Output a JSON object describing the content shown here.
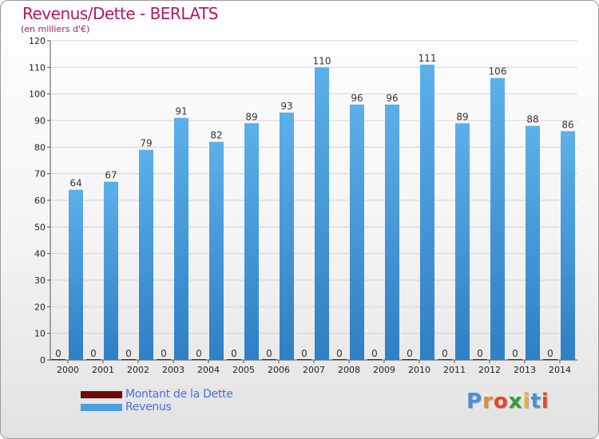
{
  "title": "Revenus/Dette - BERLATS",
  "subtitle": "(en milliers d'€)",
  "colors": {
    "title": "#b21a5e",
    "debt": "#6b0b0b",
    "revenue": "#4a9fe0",
    "legend_text": "#4a6fd8"
  },
  "logo": {
    "text": "Proxiti",
    "letter_colors": [
      "#4a8fd8",
      "#e08a2a",
      "#e04a2a",
      "#3a9a3a",
      "#d8b82a",
      "#4a8fd8",
      "#e04a2a"
    ]
  },
  "chart_data": {
    "type": "bar",
    "categories": [
      "2000",
      "2001",
      "2002",
      "2003",
      "2004",
      "2005",
      "2006",
      "2007",
      "2008",
      "2009",
      "2010",
      "2011",
      "2012",
      "2013",
      "2014"
    ],
    "series": [
      {
        "name": "Montant de la Dette",
        "color": "#6b0b0b",
        "values": [
          0,
          0,
          0,
          0,
          0,
          0,
          0,
          0,
          0,
          0,
          0,
          0,
          0,
          0,
          0
        ]
      },
      {
        "name": "Revenus",
        "color": "#4a9fe0",
        "values": [
          64,
          67,
          79,
          91,
          82,
          89,
          93,
          110,
          96,
          96,
          111,
          89,
          106,
          88,
          86
        ]
      }
    ],
    "ylim": [
      0,
      120
    ],
    "yticks": [
      0,
      10,
      20,
      30,
      40,
      50,
      60,
      70,
      80,
      90,
      100,
      110,
      120
    ],
    "grid": true,
    "legend": "bottom-left"
  }
}
